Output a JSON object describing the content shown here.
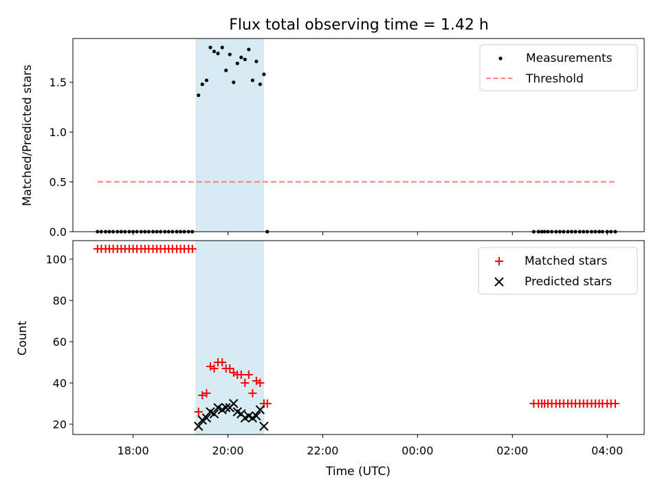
{
  "chart_data": [
    {
      "type": "scatter",
      "panel": "top",
      "title": "Flux total observing time = 1.42 h",
      "xlabel": "",
      "ylabel": "Matched/Predicted stars",
      "xlim": [
        16.73,
        28.78
      ],
      "ylim": [
        0,
        1.94
      ],
      "yticks": [
        0.0,
        0.5,
        1.0,
        1.5
      ],
      "ytick_labels": [
        "0.0",
        "0.5",
        "1.0",
        "1.5"
      ],
      "legend_position": "top-right",
      "shaded_span": [
        19.33,
        20.75
      ],
      "legend": {
        "measurements": "Measurements",
        "threshold": "Threshold"
      },
      "series": [
        {
          "name": "Measurements",
          "color": "#000000",
          "points": [
            [
              17.25,
              0
            ],
            [
              17.33,
              0
            ],
            [
              17.42,
              0
            ],
            [
              17.5,
              0
            ],
            [
              17.58,
              0
            ],
            [
              17.67,
              0
            ],
            [
              17.75,
              0
            ],
            [
              17.83,
              0
            ],
            [
              17.92,
              0
            ],
            [
              18.0,
              0
            ],
            [
              18.08,
              0
            ],
            [
              18.17,
              0
            ],
            [
              18.25,
              0
            ],
            [
              18.33,
              0
            ],
            [
              18.42,
              0
            ],
            [
              18.5,
              0
            ],
            [
              18.58,
              0
            ],
            [
              18.67,
              0
            ],
            [
              18.75,
              0
            ],
            [
              18.83,
              0
            ],
            [
              18.92,
              0
            ],
            [
              19.0,
              0
            ],
            [
              19.08,
              0
            ],
            [
              19.17,
              0
            ],
            [
              19.25,
              0
            ],
            [
              19.38,
              1.37
            ],
            [
              19.46,
              1.48
            ],
            [
              19.55,
              1.52
            ],
            [
              19.63,
              1.85
            ],
            [
              19.71,
              1.81
            ],
            [
              19.79,
              1.79
            ],
            [
              19.88,
              1.85
            ],
            [
              19.96,
              1.62
            ],
            [
              20.04,
              1.78
            ],
            [
              20.12,
              1.5
            ],
            [
              20.2,
              1.69
            ],
            [
              20.28,
              1.75
            ],
            [
              20.36,
              1.73
            ],
            [
              20.44,
              1.83
            ],
            [
              20.52,
              1.52
            ],
            [
              20.6,
              1.71
            ],
            [
              20.68,
              1.48
            ],
            [
              20.76,
              1.58
            ],
            [
              20.83,
              0
            ],
            [
              26.45,
              0
            ],
            [
              26.55,
              0
            ],
            [
              26.62,
              0
            ],
            [
              26.68,
              0
            ],
            [
              26.75,
              0
            ],
            [
              26.83,
              0
            ],
            [
              26.92,
              0
            ],
            [
              27.0,
              0
            ],
            [
              27.08,
              0
            ],
            [
              27.17,
              0
            ],
            [
              27.25,
              0
            ],
            [
              27.33,
              0
            ],
            [
              27.42,
              0
            ],
            [
              27.5,
              0
            ],
            [
              27.58,
              0
            ],
            [
              27.67,
              0
            ],
            [
              27.75,
              0
            ],
            [
              27.83,
              0
            ],
            [
              27.9,
              0
            ],
            [
              28.0,
              0
            ],
            [
              28.08,
              0
            ],
            [
              28.17,
              0
            ]
          ]
        },
        {
          "name": "Threshold",
          "color": "#ff7f7f",
          "style": "dashed",
          "x": [
            17.25,
            28.2
          ],
          "y": [
            0.5,
            0.5
          ]
        }
      ]
    },
    {
      "type": "scatter",
      "panel": "bottom",
      "title": "",
      "xlabel": "Time (UTC)",
      "ylabel": "Count",
      "xlim": [
        16.73,
        28.78
      ],
      "ylim": [
        15,
        109
      ],
      "yticks": [
        20,
        40,
        60,
        80,
        100
      ],
      "ytick_labels": [
        "20",
        "40",
        "60",
        "80",
        "100"
      ],
      "xticks": [
        18,
        20,
        22,
        24,
        26,
        28
      ],
      "xtick_labels": [
        "18:00",
        "20:00",
        "22:00",
        "00:00",
        "02:00",
        "04:00"
      ],
      "legend_position": "top-right",
      "shaded_span": [
        19.33,
        20.75
      ],
      "legend": {
        "matched": "Matched stars",
        "predicted": "Predicted stars"
      },
      "series": [
        {
          "name": "Matched stars",
          "color": "#ff0000",
          "marker": "+",
          "points": [
            [
              17.25,
              105
            ],
            [
              17.33,
              105
            ],
            [
              17.42,
              105
            ],
            [
              17.5,
              105
            ],
            [
              17.58,
              105
            ],
            [
              17.67,
              105
            ],
            [
              17.75,
              105
            ],
            [
              17.83,
              105
            ],
            [
              17.92,
              105
            ],
            [
              18.0,
              105
            ],
            [
              18.08,
              105
            ],
            [
              18.17,
              105
            ],
            [
              18.25,
              105
            ],
            [
              18.33,
              105
            ],
            [
              18.42,
              105
            ],
            [
              18.5,
              105
            ],
            [
              18.58,
              105
            ],
            [
              18.67,
              105
            ],
            [
              18.75,
              105
            ],
            [
              18.83,
              105
            ],
            [
              18.92,
              105
            ],
            [
              19.0,
              105
            ],
            [
              19.08,
              105
            ],
            [
              19.17,
              105
            ],
            [
              19.25,
              105
            ],
            [
              19.38,
              26
            ],
            [
              19.46,
              34
            ],
            [
              19.55,
              35
            ],
            [
              19.63,
              48
            ],
            [
              19.71,
              47
            ],
            [
              19.79,
              50
            ],
            [
              19.88,
              50
            ],
            [
              19.96,
              47
            ],
            [
              20.04,
              47
            ],
            [
              20.12,
              45
            ],
            [
              20.2,
              44
            ],
            [
              20.28,
              44
            ],
            [
              20.36,
              40
            ],
            [
              20.44,
              44
            ],
            [
              20.52,
              35
            ],
            [
              20.6,
              41
            ],
            [
              20.68,
              40
            ],
            [
              20.76,
              30
            ],
            [
              20.83,
              30
            ],
            [
              26.45,
              30
            ],
            [
              26.55,
              30
            ],
            [
              26.62,
              30
            ],
            [
              26.68,
              30
            ],
            [
              26.75,
              30
            ],
            [
              26.83,
              30
            ],
            [
              26.92,
              30
            ],
            [
              27.0,
              30
            ],
            [
              27.08,
              30
            ],
            [
              27.17,
              30
            ],
            [
              27.25,
              30
            ],
            [
              27.33,
              30
            ],
            [
              27.42,
              30
            ],
            [
              27.5,
              30
            ],
            [
              27.58,
              30
            ],
            [
              27.67,
              30
            ],
            [
              27.75,
              30
            ],
            [
              27.83,
              30
            ],
            [
              27.9,
              30
            ],
            [
              28.0,
              30
            ],
            [
              28.08,
              30
            ],
            [
              28.17,
              30
            ]
          ]
        },
        {
          "name": "Predicted stars",
          "color": "#000000",
          "marker": "x",
          "points": [
            [
              19.38,
              19
            ],
            [
              19.46,
              22
            ],
            [
              19.55,
              23
            ],
            [
              19.63,
              26
            ],
            [
              19.71,
              25
            ],
            [
              19.79,
              28
            ],
            [
              19.88,
              27
            ],
            [
              19.96,
              28
            ],
            [
              20.04,
              28
            ],
            [
              20.12,
              30
            ],
            [
              20.2,
              26
            ],
            [
              20.28,
              25
            ],
            [
              20.36,
              23
            ],
            [
              20.44,
              24
            ],
            [
              20.52,
              23
            ],
            [
              20.6,
              24
            ],
            [
              20.68,
              27
            ],
            [
              20.76,
              19
            ]
          ]
        }
      ]
    }
  ]
}
